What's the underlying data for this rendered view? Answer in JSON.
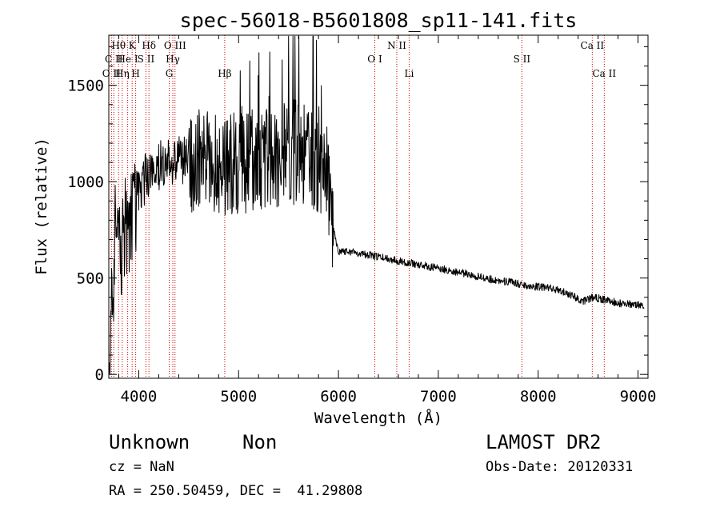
{
  "chart_data": {
    "type": "line",
    "title": "spec-56018-B5601808_sp11-141.fits",
    "xlabel": "Wavelength (Å)",
    "ylabel": "Flux (relative)",
    "xlim": [
      3700,
      9100
    ],
    "ylim": [
      -20,
      1760
    ],
    "x_ticks": [
      4000,
      5000,
      6000,
      7000,
      8000,
      9000
    ],
    "y_ticks": [
      0,
      500,
      1000,
      1500
    ],
    "line_color": "#000000",
    "marker_color": "#cc0000",
    "spectrum_anchors": [
      [
        3700,
        0
      ],
      [
        3740,
        420
      ],
      [
        3780,
        950
      ],
      [
        3820,
        650
      ],
      [
        3860,
        780
      ],
      [
        3900,
        720
      ],
      [
        3950,
        850
      ],
      [
        4000,
        950
      ],
      [
        4050,
        1000
      ],
      [
        4100,
        1050
      ],
      [
        4200,
        1080
      ],
      [
        4300,
        1100
      ],
      [
        4400,
        1120
      ],
      [
        4500,
        1110
      ],
      [
        4700,
        1100
      ],
      [
        5000,
        1090
      ],
      [
        5300,
        1120
      ],
      [
        5600,
        1150
      ],
      [
        5800,
        1100
      ],
      [
        5900,
        1000
      ],
      [
        5950,
        750
      ],
      [
        6000,
        640
      ],
      [
        6100,
        640
      ],
      [
        6300,
        620
      ],
      [
        6500,
        600
      ],
      [
        6700,
        580
      ],
      [
        6900,
        560
      ],
      [
        7100,
        540
      ],
      [
        7300,
        520
      ],
      [
        7500,
        495
      ],
      [
        7700,
        480
      ],
      [
        7900,
        460
      ],
      [
        8100,
        450
      ],
      [
        8300,
        420
      ],
      [
        8450,
        380
      ],
      [
        8550,
        400
      ],
      [
        8650,
        390
      ],
      [
        8800,
        370
      ],
      [
        9050,
        360
      ]
    ],
    "spectral_lines": [
      {
        "label": "O II",
        "wavelength": 3727,
        "row": 2
      },
      {
        "label": "C II",
        "wavelength": 3750,
        "row": 1
      },
      {
        "label": "Hθ",
        "wavelength": 3798,
        "row": 0
      },
      {
        "label": "Hη",
        "wavelength": 3835,
        "row": 2
      },
      {
        "label": "He I",
        "wavelength": 3889,
        "row": 1
      },
      {
        "label": "K",
        "wavelength": 3934,
        "row": 0
      },
      {
        "label": "H",
        "wavelength": 3969,
        "row": 2
      },
      {
        "label": "S II",
        "wavelength": 4072,
        "row": 1
      },
      {
        "label": "Hδ",
        "wavelength": 4102,
        "row": 0
      },
      {
        "label": "G",
        "wavelength": 4305,
        "row": 2
      },
      {
        "label": "Hγ",
        "wavelength": 4341,
        "row": 1
      },
      {
        "label": "O III",
        "wavelength": 4363,
        "row": 0
      },
      {
        "label": "Hβ",
        "wavelength": 4861,
        "row": 2
      },
      {
        "label": "O I",
        "wavelength": 6364,
        "row": 1
      },
      {
        "label": "N II",
        "wavelength": 6584,
        "row": 0
      },
      {
        "label": "Li",
        "wavelength": 6708,
        "row": 2
      },
      {
        "label": "S II",
        "wavelength": 7837,
        "row": 1
      },
      {
        "label": "Ca II",
        "wavelength": 8542,
        "row": 0
      },
      {
        "label": "Ca II",
        "wavelength": 8662,
        "row": 2
      }
    ]
  },
  "info": {
    "object_class": "Unknown",
    "subclass": "Non",
    "survey": "LAMOST DR2",
    "redshift": "cz = NaN",
    "obs_date": "Obs-Date: 20120331",
    "coords": "RA = 250.50459, DEC =  41.29808"
  }
}
